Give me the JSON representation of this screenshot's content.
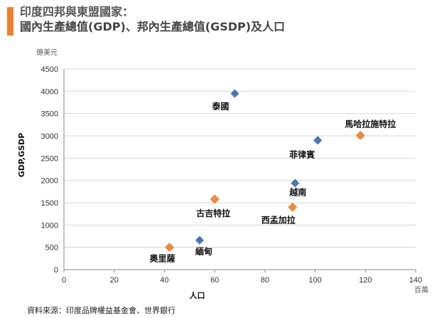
{
  "header": {
    "title_line1": "印度四邦與東盟國家：",
    "title_line2": "國內生產總值(GDP)、邦內生產總值(GSDP)及人口"
  },
  "footer": {
    "source": "資料來源：印度品牌權益基金會、世界銀行"
  },
  "chart_data": {
    "type": "scatter",
    "title": "",
    "xlabel": "人口",
    "ylabel": "GDP,GSDP",
    "x_unit": "百萬",
    "y_unit": "億美元",
    "xlim": [
      0,
      140
    ],
    "ylim": [
      0,
      4500
    ],
    "x_ticks": [
      0,
      20,
      40,
      60,
      80,
      100,
      120,
      140
    ],
    "y_ticks": [
      0,
      500,
      1000,
      1500,
      2000,
      2500,
      3000,
      3500,
      4000,
      4500
    ],
    "grid": "horizontal",
    "colors": {
      "blue": "#4a77bd",
      "orange": "#ef8a3a"
    },
    "points": [
      {
        "label": "泰國",
        "x": 68,
        "y": 3950,
        "color": "blue"
      },
      {
        "label": "菲律賓",
        "x": 101,
        "y": 2900,
        "color": "blue"
      },
      {
        "label": "越南",
        "x": 92,
        "y": 1940,
        "color": "blue"
      },
      {
        "label": "緬甸",
        "x": 54,
        "y": 660,
        "color": "blue"
      },
      {
        "label": "馬哈拉施特拉",
        "x": 118,
        "y": 3010,
        "color": "orange"
      },
      {
        "label": "古吉特拉",
        "x": 60,
        "y": 1580,
        "color": "orange"
      },
      {
        "label": "西孟加拉",
        "x": 91,
        "y": 1400,
        "color": "orange"
      },
      {
        "label": "奧里薩",
        "x": 42,
        "y": 500,
        "color": "orange"
      }
    ]
  }
}
